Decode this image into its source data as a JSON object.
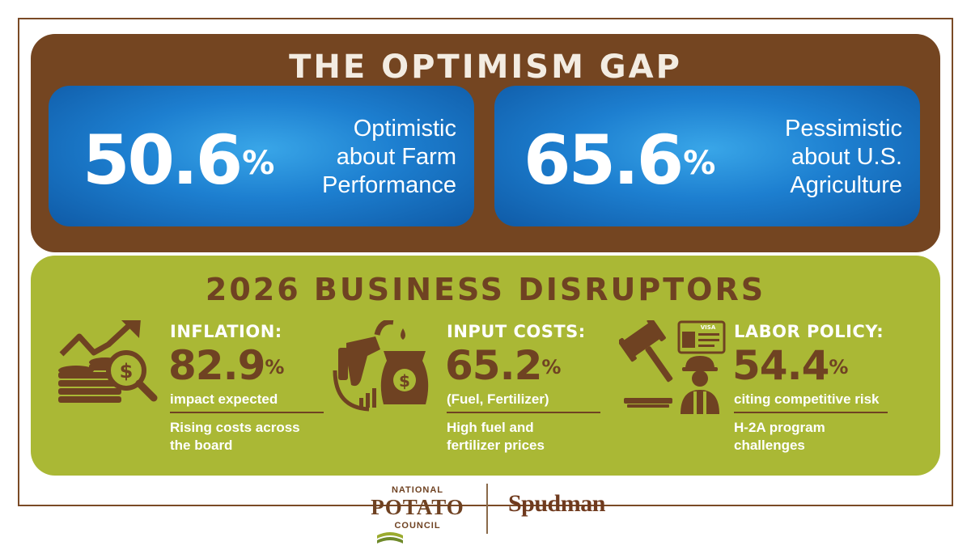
{
  "header": {
    "title": "THE OPTIMISM GAP"
  },
  "stats": [
    {
      "value": "50.6",
      "unit": "%",
      "line1": "Optimistic",
      "line2": "about Farm",
      "line3": "Performance"
    },
    {
      "value": "65.6",
      "unit": "%",
      "line1": "Pessimistic",
      "line2": "about U.S.",
      "line3": "Agriculture"
    }
  ],
  "disruptors": {
    "title": "2026 BUSINESS DISRUPTORS",
    "items": [
      {
        "label": "INFLATION:",
        "value": "82.9",
        "unit": "%",
        "sub": "impact expected",
        "note_line1": "Rising costs across",
        "note_line2": "the board",
        "icon": "inflation-chart-coins-icon"
      },
      {
        "label": "INPUT COSTS:",
        "value": "65.2",
        "unit": "%",
        "sub": "(Fuel, Fertilizer)",
        "note_line1": "High fuel and",
        "note_line2": "fertilizer prices",
        "icon": "fuel-nozzle-fertilizer-bag-icon"
      },
      {
        "label": "LABOR POLICY:",
        "value": "54.4",
        "unit": "%",
        "sub": "citing competitive risk",
        "note_line1": "H-2A program",
        "note_line2": "challenges",
        "icon": "gavel-visa-worker-icon"
      }
    ],
    "visa_badge": "VISA"
  },
  "footer": {
    "npc_line1": "NATIONAL",
    "npc_line2": "POTATO",
    "npc_line3": "COUNCIL",
    "spudman": "Spudman"
  },
  "colors": {
    "brown": "#744521",
    "dark_brown_text": "#6f4222",
    "green": "#aab835",
    "blue": "#1d7fd0",
    "title_cream": "#f3ece2"
  }
}
